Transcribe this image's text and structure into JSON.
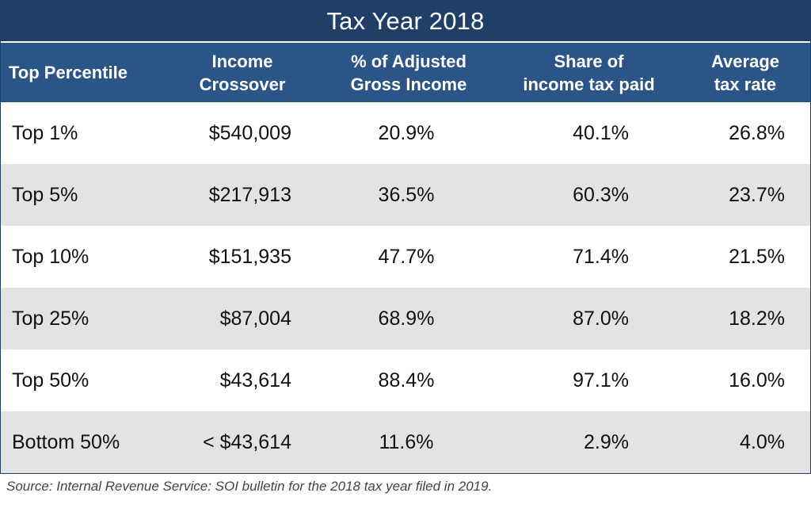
{
  "chart_data": {
    "type": "table",
    "title": "Tax Year 2018",
    "columns": [
      "Top Percentile",
      "Income\nCrossover",
      "% of Adjusted\nGross Income",
      "Share of\nincome tax paid",
      "Average\ntax rate"
    ],
    "rows": [
      [
        "Top 1%",
        "$540,009",
        "20.9%",
        "40.1%",
        "26.8%"
      ],
      [
        "Top 5%",
        "$217,913",
        "36.5%",
        "60.3%",
        "23.7%"
      ],
      [
        "Top 10%",
        "$151,935",
        "47.7%",
        "71.4%",
        "21.5%"
      ],
      [
        "Top 25%",
        "$87,004",
        "68.9%",
        "87.0%",
        "18.2%"
      ],
      [
        "Top 50%",
        "$43,614",
        "88.4%",
        "97.1%",
        "16.0%"
      ],
      [
        "Bottom 50%",
        "< $43,614",
        "11.6%",
        "2.9%",
        "4.0%"
      ]
    ],
    "source": "Source: Internal Revenue Service: SOI bulletin for the 2018 tax year filed in 2019.",
    "colors": {
      "title_background": "#1f3f66",
      "header_background": "#2c5587",
      "shaded_row": "#e3e3e3"
    }
  }
}
